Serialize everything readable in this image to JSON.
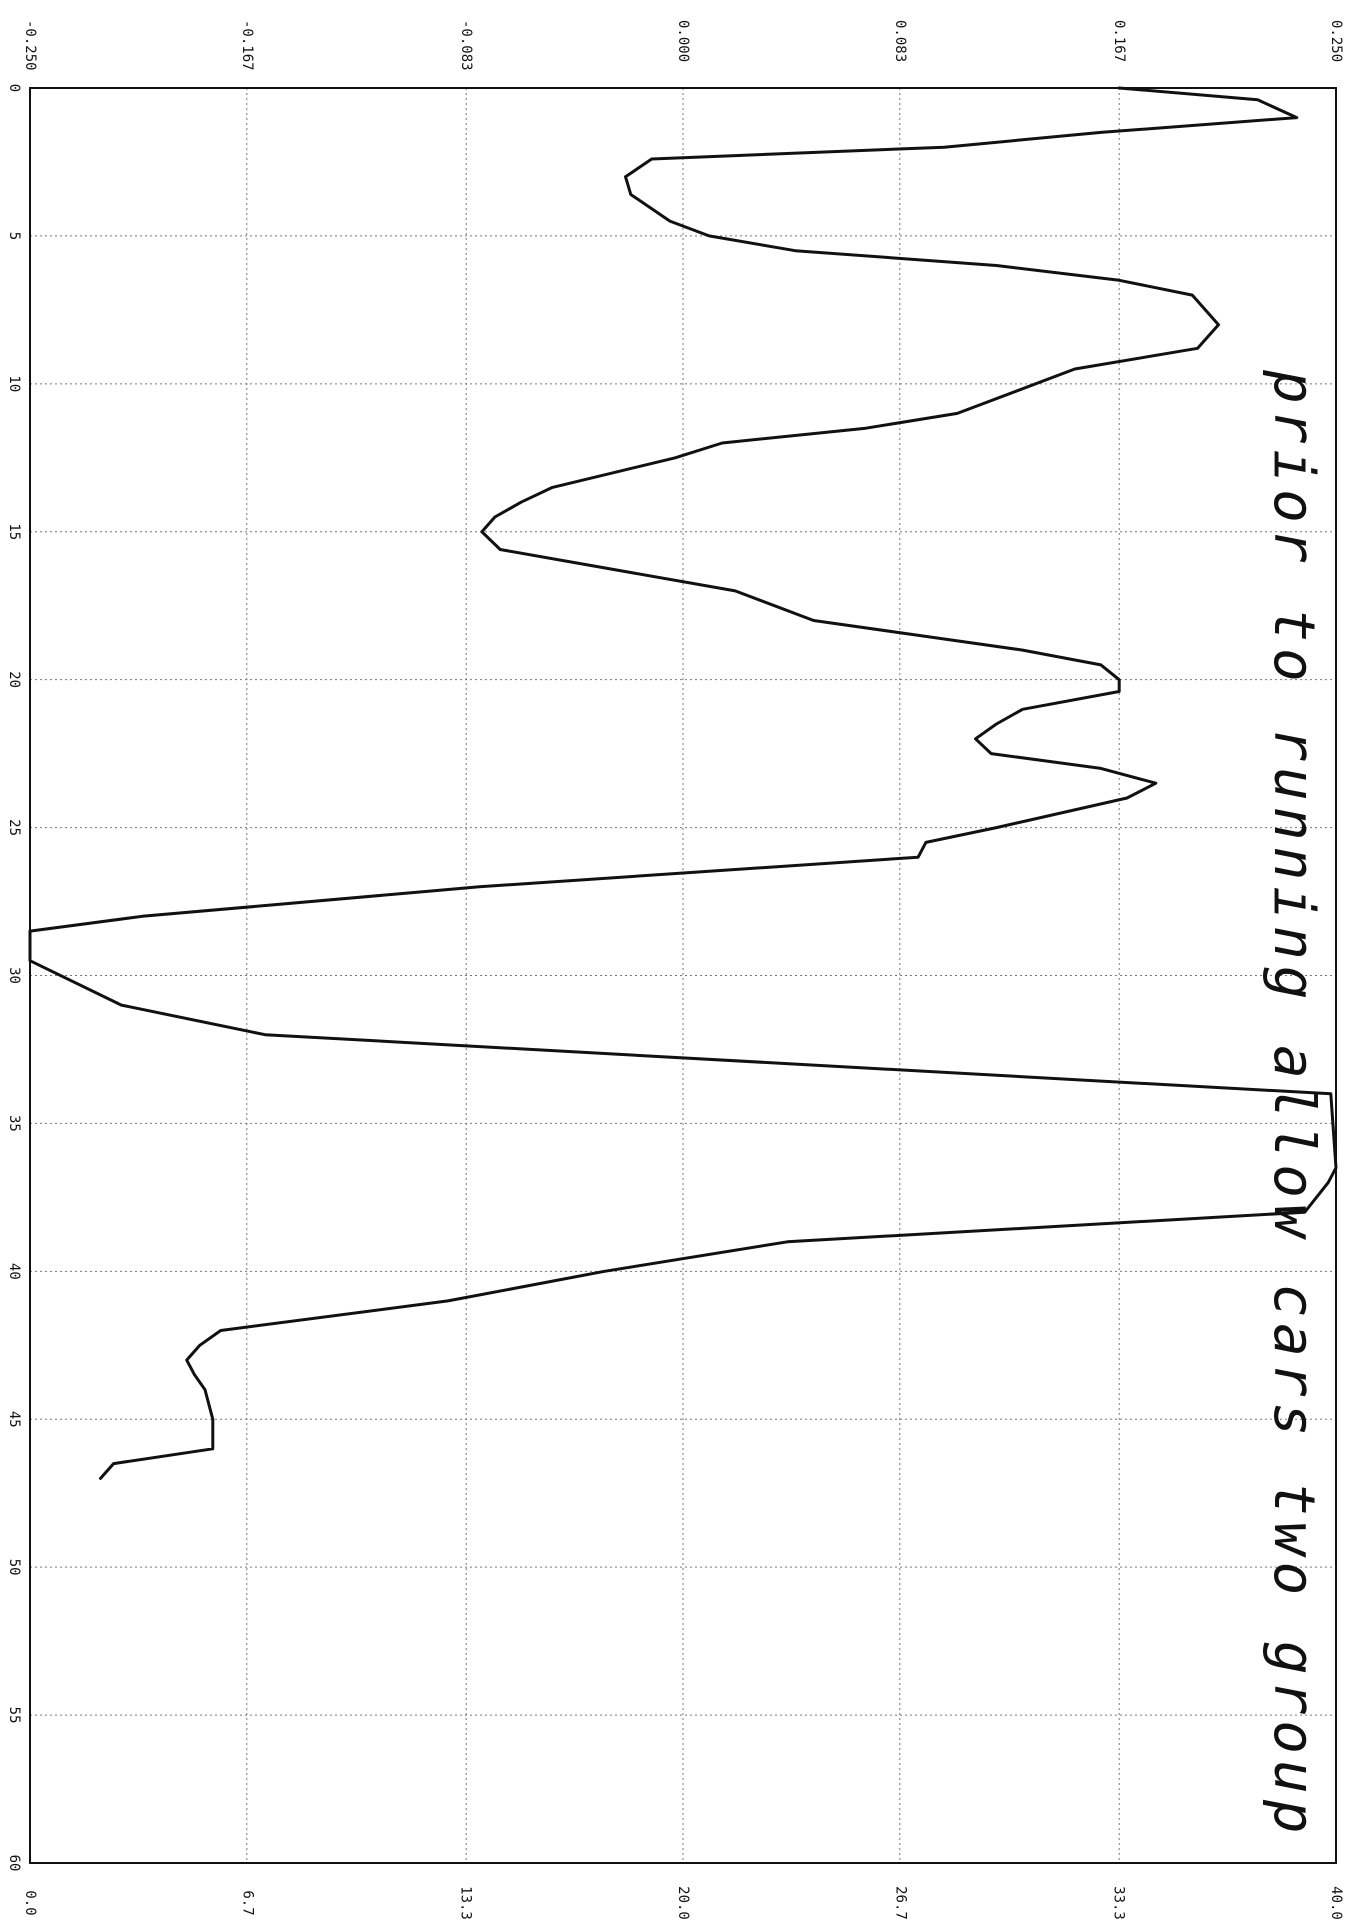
{
  "chart_data": {
    "type": "line",
    "orientation": "rotated-90-clockwise",
    "title": "",
    "annotation": "prior to running allow cars two group",
    "x_axis": {
      "label": "",
      "ticks": [
        "0",
        "5",
        "10",
        "15",
        "20",
        "25",
        "30",
        "35",
        "40",
        "45",
        "50",
        "55",
        "60"
      ],
      "range": [
        0,
        60
      ]
    },
    "y_axis_top": {
      "label": "",
      "ticks": [
        "-0.250",
        "-0.167",
        "-0.083",
        "0.000",
        "0.083",
        "0.167",
        "0.250"
      ],
      "range": [
        -0.25,
        0.25
      ]
    },
    "y_axis_bottom": {
      "label": "",
      "ticks": [
        "0.0",
        "6.7",
        "13.3",
        "20.0",
        "26.7",
        "33.3",
        "40.0"
      ],
      "range": [
        0,
        40
      ]
    },
    "grid": true,
    "series": [
      {
        "points": [
          [
            0,
            0.167
          ],
          [
            0.4,
            0.22
          ],
          [
            1,
            0.235
          ],
          [
            1.5,
            0.16
          ],
          [
            2,
            0.1
          ],
          [
            2.4,
            -0.012
          ],
          [
            3,
            -0.022
          ],
          [
            3.6,
            -0.02
          ],
          [
            4.5,
            -0.005
          ],
          [
            5,
            0.01
          ],
          [
            5.5,
            0.043
          ],
          [
            6,
            0.12
          ],
          [
            6.5,
            0.167
          ],
          [
            7,
            0.195
          ],
          [
            8,
            0.205
          ],
          [
            8.8,
            0.197
          ],
          [
            9.5,
            0.15
          ],
          [
            11,
            0.105
          ],
          [
            11.5,
            0.07
          ],
          [
            12,
            0.015
          ],
          [
            12.5,
            -0.003
          ],
          [
            13.5,
            -0.05
          ],
          [
            14,
            -0.062
          ],
          [
            14.5,
            -0.072
          ],
          [
            15,
            -0.077
          ],
          [
            15.6,
            -0.07
          ],
          [
            17,
            0.02
          ],
          [
            18,
            0.05
          ],
          [
            19,
            0.13
          ],
          [
            19.5,
            0.16
          ],
          [
            20,
            0.167
          ],
          [
            20.4,
            0.167
          ],
          [
            21,
            0.13
          ],
          [
            21.5,
            0.12
          ],
          [
            22,
            0.112
          ],
          [
            22.5,
            0.118
          ],
          [
            23,
            0.16
          ],
          [
            23.5,
            0.181
          ],
          [
            24,
            0.17
          ],
          [
            25,
            0.12
          ],
          [
            25.5,
            0.093
          ],
          [
            26,
            0.09
          ],
          [
            27,
            -0.078
          ],
          [
            28,
            -0.207
          ],
          [
            28.5,
            -0.25
          ],
          [
            29.5,
            -0.25
          ],
          [
            31,
            -0.215
          ],
          [
            32,
            -0.16
          ],
          [
            34,
            0.248
          ],
          [
            36.5,
            0.25
          ],
          [
            37,
            0.247
          ],
          [
            38,
            0.238
          ],
          [
            39,
            0.04
          ],
          [
            40,
            -0.03
          ],
          [
            41,
            -0.09
          ],
          [
            42,
            -0.177
          ],
          [
            42.5,
            -0.185
          ],
          [
            43,
            -0.19
          ],
          [
            43.5,
            -0.187
          ],
          [
            44,
            -0.183
          ],
          [
            45,
            -0.18
          ],
          [
            46,
            -0.18
          ],
          [
            46.5,
            -0.218
          ],
          [
            47,
            -0.223
          ]
        ]
      }
    ]
  }
}
